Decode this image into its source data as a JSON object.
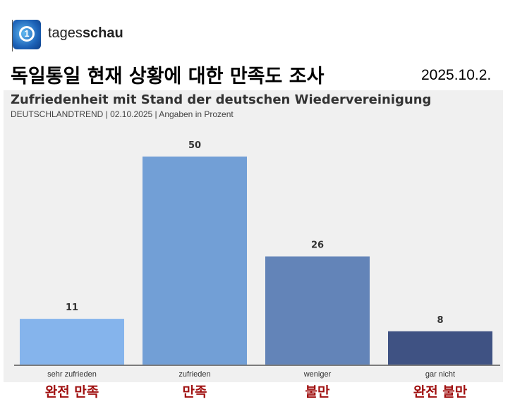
{
  "header": {
    "brand_regular": "tages",
    "brand_bold": "schau",
    "title": "독일통일 현재 상황에 대한 만족도 조사",
    "date": "2025.10.2."
  },
  "chart_data": {
    "type": "bar",
    "title": "Zufriedenheit mit Stand der deutschen Wiedervereinigung",
    "subtitle": "DEUTSCHLANDTREND | 02.10.2025 | Angaben in Prozent",
    "categories": [
      "sehr zufrieden",
      "zufrieden",
      "weniger",
      "gar nicht"
    ],
    "values": [
      11,
      50,
      26,
      8
    ],
    "colors": [
      "#85b4ec",
      "#729fd6",
      "#6384b8",
      "#3f5283"
    ],
    "ylim": [
      0,
      55
    ],
    "grid": false
  },
  "korean_labels": [
    "완전 만족",
    "만족",
    "불만",
    "완전 불만"
  ]
}
